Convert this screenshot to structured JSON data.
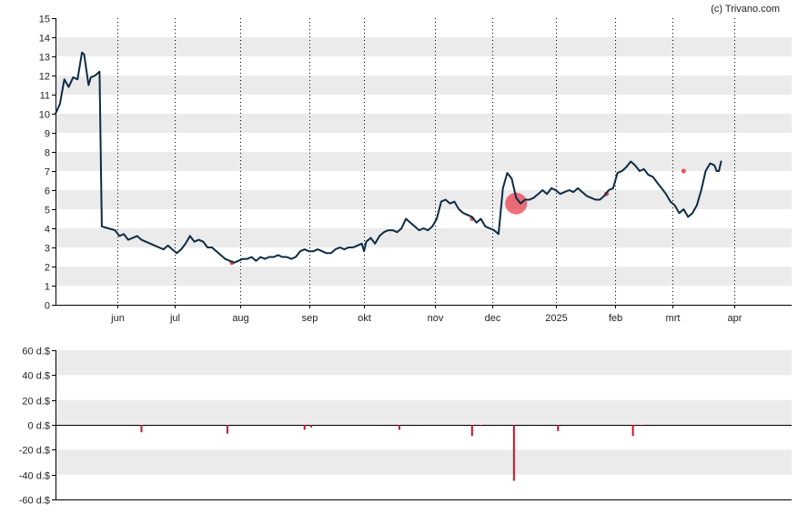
{
  "credit": "(c) Trivano.com",
  "colors": {
    "band": "#ebebeb",
    "price_line": "#0d2b45",
    "marker": "#e8404f",
    "volume_bar": "#c8102e",
    "axis": "#000000"
  },
  "chart_data": [
    {
      "type": "line",
      "title": "",
      "ylim": [
        0,
        15
      ],
      "y_ticks": [
        "0",
        "1",
        "2",
        "3",
        "4",
        "5",
        "6",
        "7",
        "8",
        "9",
        "10",
        "11",
        "12",
        "13",
        "14",
        "15"
      ],
      "x_range": [
        0,
        334
      ],
      "x_ticks": [
        {
          "label": "jun",
          "x": 28
        },
        {
          "label": "jul",
          "x": 54
        },
        {
          "label": "aug",
          "x": 84
        },
        {
          "label": "sep",
          "x": 115
        },
        {
          "label": "okt",
          "x": 140
        },
        {
          "label": "nov",
          "x": 172
        },
        {
          "label": "dec",
          "x": 198
        },
        {
          "label": "2025",
          "x": 227
        },
        {
          "label": "feb",
          "x": 254
        },
        {
          "label": "mrt",
          "x": 280
        },
        {
          "label": "apr",
          "x": 308
        }
      ],
      "grid_x": "dotted vertical lines at month starts",
      "series": [
        {
          "points": [
            [
              0,
              10.0
            ],
            [
              2,
              10.5
            ],
            [
              4,
              11.8
            ],
            [
              6,
              11.4
            ],
            [
              8,
              11.9
            ],
            [
              10,
              11.8
            ],
            [
              12,
              13.2
            ],
            [
              13,
              13.1
            ],
            [
              15,
              11.5
            ],
            [
              16,
              11.9
            ],
            [
              18,
              12.0
            ],
            [
              20,
              12.2
            ],
            [
              21,
              4.1
            ],
            [
              24,
              4.0
            ],
            [
              27,
              3.9
            ],
            [
              29,
              3.6
            ],
            [
              31,
              3.7
            ],
            [
              33,
              3.4
            ],
            [
              35,
              3.5
            ],
            [
              37,
              3.6
            ],
            [
              39,
              3.4
            ],
            [
              41,
              3.3
            ],
            [
              43,
              3.2
            ],
            [
              45,
              3.1
            ],
            [
              47,
              3.0
            ],
            [
              49,
              2.9
            ],
            [
              51,
              3.1
            ],
            [
              53,
              2.9
            ],
            [
              55,
              2.7
            ],
            [
              57,
              2.9
            ],
            [
              59,
              3.2
            ],
            [
              61,
              3.6
            ],
            [
              63,
              3.3
            ],
            [
              65,
              3.4
            ],
            [
              67,
              3.3
            ],
            [
              69,
              3.0
            ],
            [
              71,
              3.0
            ],
            [
              73,
              2.8
            ],
            [
              75,
              2.6
            ],
            [
              77,
              2.4
            ],
            [
              79,
              2.3
            ],
            [
              81,
              2.2
            ],
            [
              83,
              2.3
            ],
            [
              85,
              2.4
            ],
            [
              87,
              2.4
            ],
            [
              89,
              2.5
            ],
            [
              91,
              2.3
            ],
            [
              93,
              2.5
            ],
            [
              95,
              2.4
            ],
            [
              97,
              2.5
            ],
            [
              99,
              2.5
            ],
            [
              101,
              2.6
            ],
            [
              103,
              2.5
            ],
            [
              105,
              2.5
            ],
            [
              107,
              2.4
            ],
            [
              109,
              2.5
            ],
            [
              111,
              2.8
            ],
            [
              113,
              2.9
            ],
            [
              115,
              2.8
            ],
            [
              117,
              2.8
            ],
            [
              119,
              2.9
            ],
            [
              121,
              2.8
            ],
            [
              123,
              2.7
            ],
            [
              125,
              2.7
            ],
            [
              127,
              2.9
            ],
            [
              129,
              3.0
            ],
            [
              131,
              2.9
            ],
            [
              133,
              3.0
            ],
            [
              135,
              3.0
            ],
            [
              137,
              3.1
            ],
            [
              139,
              3.2
            ],
            [
              140,
              2.8
            ],
            [
              141,
              3.3
            ],
            [
              143,
              3.5
            ],
            [
              145,
              3.2
            ],
            [
              147,
              3.6
            ],
            [
              149,
              3.8
            ],
            [
              151,
              3.9
            ],
            [
              153,
              3.9
            ],
            [
              155,
              3.8
            ],
            [
              157,
              4.0
            ],
            [
              159,
              4.5
            ],
            [
              161,
              4.3
            ],
            [
              163,
              4.1
            ],
            [
              165,
              3.9
            ],
            [
              167,
              4.0
            ],
            [
              169,
              3.9
            ],
            [
              171,
              4.1
            ],
            [
              173,
              4.5
            ],
            [
              175,
              5.4
            ],
            [
              177,
              5.5
            ],
            [
              179,
              5.3
            ],
            [
              181,
              5.4
            ],
            [
              183,
              5.0
            ],
            [
              185,
              4.8
            ],
            [
              187,
              4.7
            ],
            [
              189,
              4.6
            ],
            [
              191,
              4.3
            ],
            [
              193,
              4.5
            ],
            [
              195,
              4.1
            ],
            [
              197,
              4.0
            ],
            [
              199,
              3.9
            ],
            [
              201,
              3.7
            ],
            [
              203,
              6.1
            ],
            [
              205,
              6.9
            ],
            [
              207,
              6.6
            ],
            [
              209,
              5.6
            ],
            [
              211,
              5.3
            ],
            [
              213,
              5.5
            ],
            [
              215,
              5.5
            ],
            [
              217,
              5.6
            ],
            [
              219,
              5.8
            ],
            [
              221,
              6.0
            ],
            [
              223,
              5.8
            ],
            [
              225,
              6.1
            ],
            [
              227,
              6.0
            ],
            [
              229,
              5.8
            ],
            [
              231,
              5.9
            ],
            [
              233,
              6.0
            ],
            [
              235,
              5.9
            ],
            [
              237,
              6.1
            ],
            [
              239,
              5.9
            ],
            [
              241,
              5.7
            ],
            [
              243,
              5.6
            ],
            [
              245,
              5.5
            ],
            [
              247,
              5.5
            ],
            [
              249,
              5.7
            ],
            [
              251,
              6.0
            ],
            [
              253,
              6.1
            ],
            [
              255,
              6.9
            ],
            [
              257,
              7.0
            ],
            [
              259,
              7.2
            ],
            [
              261,
              7.5
            ],
            [
              263,
              7.3
            ],
            [
              265,
              7.0
            ],
            [
              267,
              7.1
            ],
            [
              269,
              6.8
            ],
            [
              271,
              6.7
            ],
            [
              273,
              6.4
            ],
            [
              275,
              6.1
            ],
            [
              277,
              5.8
            ],
            [
              279,
              5.4
            ],
            [
              281,
              5.2
            ],
            [
              283,
              4.8
            ],
            [
              285,
              5.0
            ],
            [
              287,
              4.6
            ],
            [
              289,
              4.8
            ],
            [
              291,
              5.2
            ],
            [
              293,
              6.0
            ],
            [
              295,
              7.0
            ],
            [
              297,
              7.4
            ],
            [
              299,
              7.3
            ],
            [
              300,
              7.0
            ],
            [
              301,
              7.0
            ],
            [
              302,
              7.5
            ]
          ]
        }
      ],
      "markers": [
        {
          "x": 80,
          "y": 2.2,
          "size": "small"
        },
        {
          "x": 189,
          "y": 4.5,
          "size": "small"
        },
        {
          "x": 209,
          "y": 5.3,
          "size": "large"
        },
        {
          "x": 250,
          "y": 5.8,
          "size": "small"
        },
        {
          "x": 285,
          "y": 7.0,
          "size": "small"
        }
      ]
    },
    {
      "type": "bar",
      "title": "",
      "unit_suffix": " d.$",
      "ylim": [
        -60,
        60
      ],
      "y_ticks": [
        "60 d.$",
        "40 d.$",
        "20 d.$",
        "0 d.$",
        "-20 d.$",
        "-40 d.$",
        "-60 d.$"
      ],
      "bars": [
        {
          "x": 39,
          "value": -6
        },
        {
          "x": 78,
          "value": -7
        },
        {
          "x": 113,
          "value": -4
        },
        {
          "x": 116,
          "value": -2
        },
        {
          "x": 156,
          "value": -4
        },
        {
          "x": 189,
          "value": -9
        },
        {
          "x": 193,
          "value": -1
        },
        {
          "x": 208,
          "value": -45
        },
        {
          "x": 228,
          "value": -5
        },
        {
          "x": 262,
          "value": -9
        },
        {
          "x": 266,
          "value": -1
        }
      ]
    }
  ]
}
